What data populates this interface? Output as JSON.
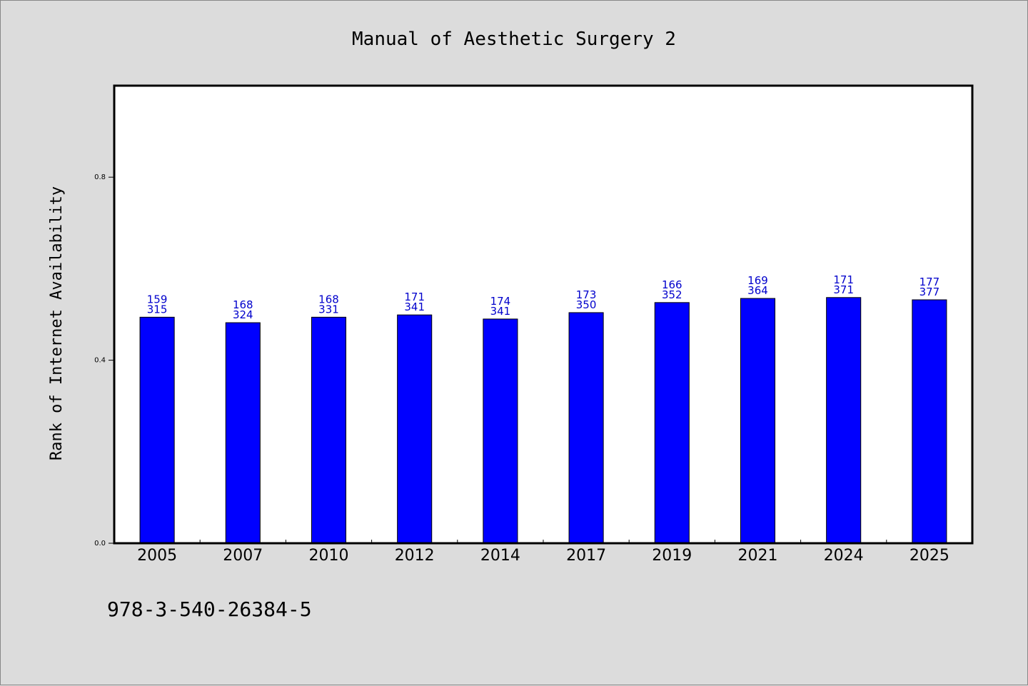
{
  "chart_data": {
    "type": "bar",
    "title": "Manual of Aesthetic Surgery 2",
    "ylabel": "Rank of Internet Availability",
    "xlabel": "",
    "categories": [
      "2005",
      "2007",
      "2010",
      "2012",
      "2014",
      "2017",
      "2019",
      "2021",
      "2024",
      "2025"
    ],
    "values": [
      0.494,
      0.482,
      0.494,
      0.499,
      0.49,
      0.504,
      0.526,
      0.535,
      0.537,
      0.532
    ],
    "data_labels_top": [
      "159",
      "168",
      "168",
      "171",
      "174",
      "173",
      "166",
      "169",
      "171",
      "177"
    ],
    "data_labels_bottom": [
      "315",
      "324",
      "331",
      "341",
      "341",
      "350",
      "352",
      "364",
      "371",
      "377"
    ],
    "ylim": [
      0.0,
      1.0
    ],
    "yticks": [
      "0.0",
      "0.4",
      "0.8"
    ],
    "ytick_values": [
      0.0,
      0.4,
      0.8
    ],
    "grid": false,
    "legend": "none",
    "footnote": "978-3-540-26384-5",
    "colors": {
      "bar": "#0000ff",
      "bar_edge": "#000000",
      "data_label": "#0000cc",
      "plot_background": "#ffffff",
      "figure_background": "#dcdcdc"
    }
  }
}
